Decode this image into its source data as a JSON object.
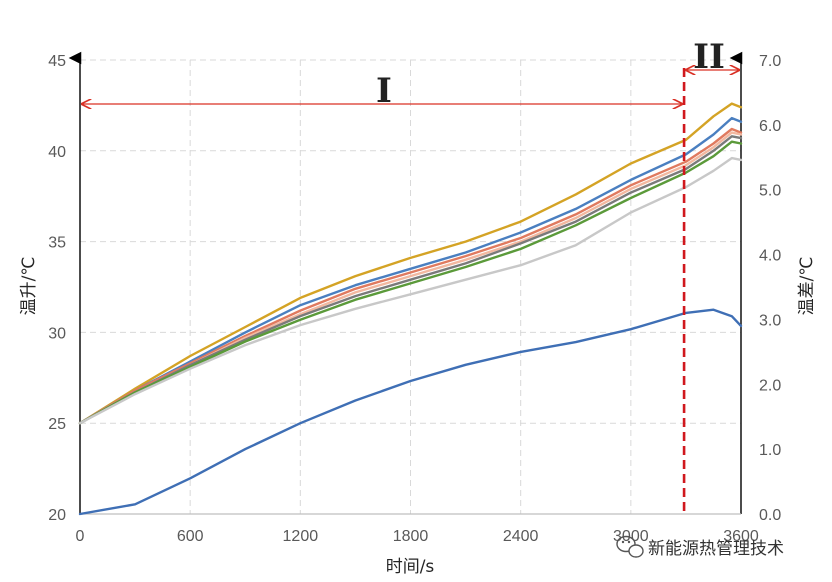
{
  "chart_data": {
    "type": "line",
    "xlabel": "时间/s",
    "ylabel": "温升/℃",
    "y2label": "温差/℃",
    "xlim": [
      0,
      3600
    ],
    "ylim": [
      20,
      45
    ],
    "y2lim": [
      0.0,
      7.0
    ],
    "x_ticks": [
      "0",
      "600",
      "1200",
      "1800",
      "2400",
      "3000",
      "3600"
    ],
    "y_ticks": [
      "20",
      "25",
      "30",
      "35",
      "40",
      "45"
    ],
    "y2_ticks": [
      "0.0",
      "1.0",
      "2.0",
      "3.0",
      "4.0",
      "5.0",
      "6.0",
      "7.0"
    ],
    "grid": true,
    "divider_x": 3290,
    "regions": [
      {
        "label": "I",
        "x_start": 0,
        "x_end": 3290
      },
      {
        "label": "II",
        "x_start": 3290,
        "x_end": 3600
      }
    ],
    "x": [
      0,
      300,
      600,
      900,
      1200,
      1500,
      1800,
      2100,
      2400,
      2700,
      3000,
      3300,
      3450,
      3550,
      3600
    ],
    "series": [
      {
        "axis": "left",
        "color": "#d4a325",
        "values": [
          25.0,
          26.9,
          28.7,
          30.3,
          31.9,
          33.1,
          34.1,
          35.0,
          36.1,
          37.6,
          39.3,
          40.6,
          41.9,
          42.6,
          42.4
        ]
      },
      {
        "axis": "left",
        "color": "#4a7fc0",
        "values": [
          25.0,
          26.8,
          28.4,
          30.0,
          31.5,
          32.6,
          33.5,
          34.4,
          35.5,
          36.8,
          38.4,
          39.8,
          40.9,
          41.8,
          41.6
        ]
      },
      {
        "axis": "left",
        "color": "#e07a5f",
        "values": [
          25.0,
          26.8,
          28.3,
          29.8,
          31.2,
          32.4,
          33.3,
          34.2,
          35.2,
          36.5,
          38.1,
          39.4,
          40.4,
          41.2,
          41.0
        ]
      },
      {
        "axis": "left",
        "color": "#f2b8a0",
        "values": [
          25.0,
          26.7,
          28.2,
          29.7,
          31.0,
          32.2,
          33.1,
          34.0,
          35.0,
          36.3,
          37.9,
          39.2,
          40.2,
          41.0,
          40.9
        ]
      },
      {
        "axis": "left",
        "color": "#7a7a7a",
        "values": [
          25.0,
          26.7,
          28.2,
          29.6,
          30.9,
          32.0,
          32.9,
          33.8,
          34.9,
          36.1,
          37.7,
          39.0,
          40.0,
          40.8,
          40.7
        ]
      },
      {
        "axis": "left",
        "color": "#5b9a3a",
        "values": [
          25.0,
          26.7,
          28.1,
          29.5,
          30.7,
          31.8,
          32.7,
          33.6,
          34.6,
          35.9,
          37.4,
          38.8,
          39.7,
          40.5,
          40.4
        ]
      },
      {
        "axis": "left",
        "color": "#c8c8c8",
        "values": [
          25.0,
          26.6,
          28.0,
          29.3,
          30.4,
          31.3,
          32.1,
          32.9,
          33.7,
          34.8,
          36.6,
          38.0,
          38.9,
          39.6,
          39.5
        ]
      },
      {
        "axis": "right",
        "color": "#3f6fb5",
        "values": [
          0.0,
          0.15,
          0.55,
          1.0,
          1.4,
          1.75,
          2.05,
          2.3,
          2.5,
          2.65,
          2.85,
          3.1,
          3.15,
          3.05,
          2.9
        ]
      }
    ]
  },
  "watermark": {
    "text": "新能源热管理技术",
    "icon": "wechat-icon"
  }
}
